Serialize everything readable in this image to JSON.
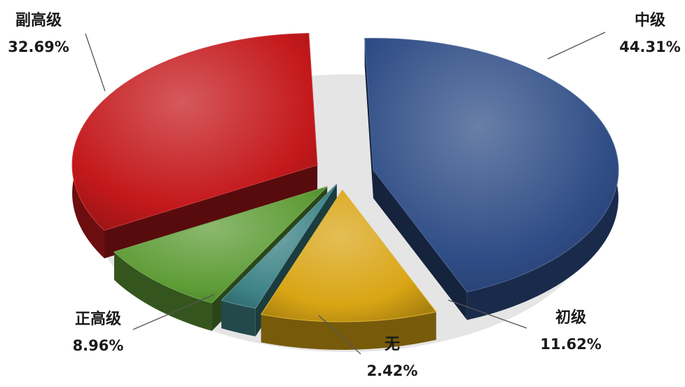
{
  "chart_data": {
    "type": "pie",
    "style": "3d-exploded",
    "slices": [
      {
        "label": "中级",
        "value": 44.31,
        "pct_label": "44.31%",
        "color": "#2f4d86"
      },
      {
        "label": "初级",
        "value": 11.62,
        "pct_label": "11.62%",
        "color": "#d9a514"
      },
      {
        "label": "无",
        "value": 2.42,
        "pct_label": "2.42%",
        "color": "#3f8589"
      },
      {
        "label": "正高级",
        "value": 8.96,
        "pct_label": "8.96%",
        "color": "#5e9c36"
      },
      {
        "label": "副高级",
        "value": 32.69,
        "pct_label": "32.69%",
        "color": "#c4191c"
      }
    ],
    "legend": "none"
  }
}
